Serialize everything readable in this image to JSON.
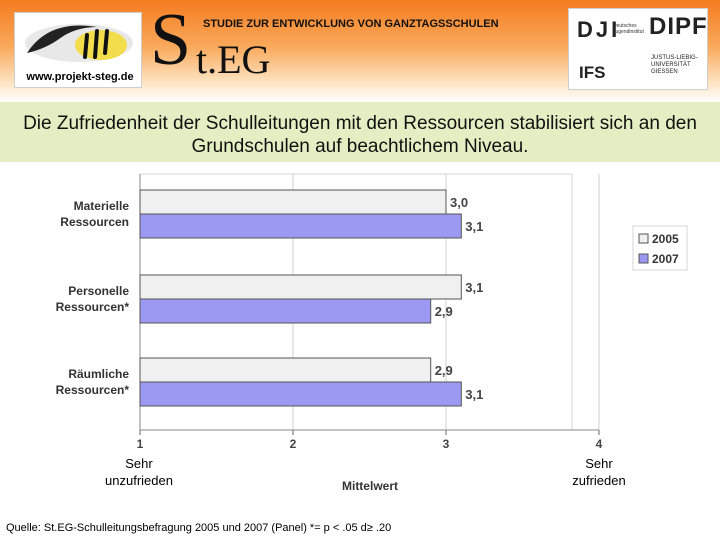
{
  "header": {
    "website": "www.projekt-steg.de",
    "study_title": "STUDIE ZUR ENTWICKLUNG VON GANZTAGSSCHULEN",
    "brand_initial": "S",
    "brand_rest": "t.EG",
    "partner_logos": {
      "dji": "DJI",
      "dji_sub": "Deutsches Jugendinstitut",
      "dipf": "DIPF",
      "ifs": "IFS",
      "jlu": "JUSTUS-LIEBIG-UNIVERSITÄT GIESSEN"
    }
  },
  "headline": "Die Zufriedenheit der Schulleitungen mit den Ressourcen stabilisiert sich an den Grundschulen auf beachtlichem Niveau.",
  "chart_data": {
    "type": "bar",
    "orientation": "horizontal",
    "categories": [
      [
        "Materielle",
        "Ressourcen"
      ],
      [
        "Personelle",
        "Ressourcen*"
      ],
      [
        "Räumliche",
        "Ressourcen*"
      ]
    ],
    "series": [
      {
        "name": "2005",
        "values": [
          3.0,
          3.1,
          2.9
        ],
        "value_labels": [
          "3,0",
          "3,1",
          "2,9"
        ],
        "color": "#f0f0f0"
      },
      {
        "name": "2007",
        "values": [
          3.1,
          2.9,
          3.1
        ],
        "value_labels": [
          "3,1",
          "2,9",
          "3,1"
        ],
        "color": "#9b99f2"
      }
    ],
    "xlabel": "Mittelwert",
    "xlim": [
      1,
      4
    ],
    "xticks": [
      "1",
      "2",
      "3",
      "4"
    ],
    "scale_labels": {
      "min": "Sehr\nunzufrieden",
      "max": "Sehr\nzufrieden"
    },
    "grid": "vertical",
    "legend_position": "right"
  },
  "source": "Quelle: St.EG-Schulleitungsbefragung 2005 und 2007 (Panel) *= p < .05 d≥ .20"
}
